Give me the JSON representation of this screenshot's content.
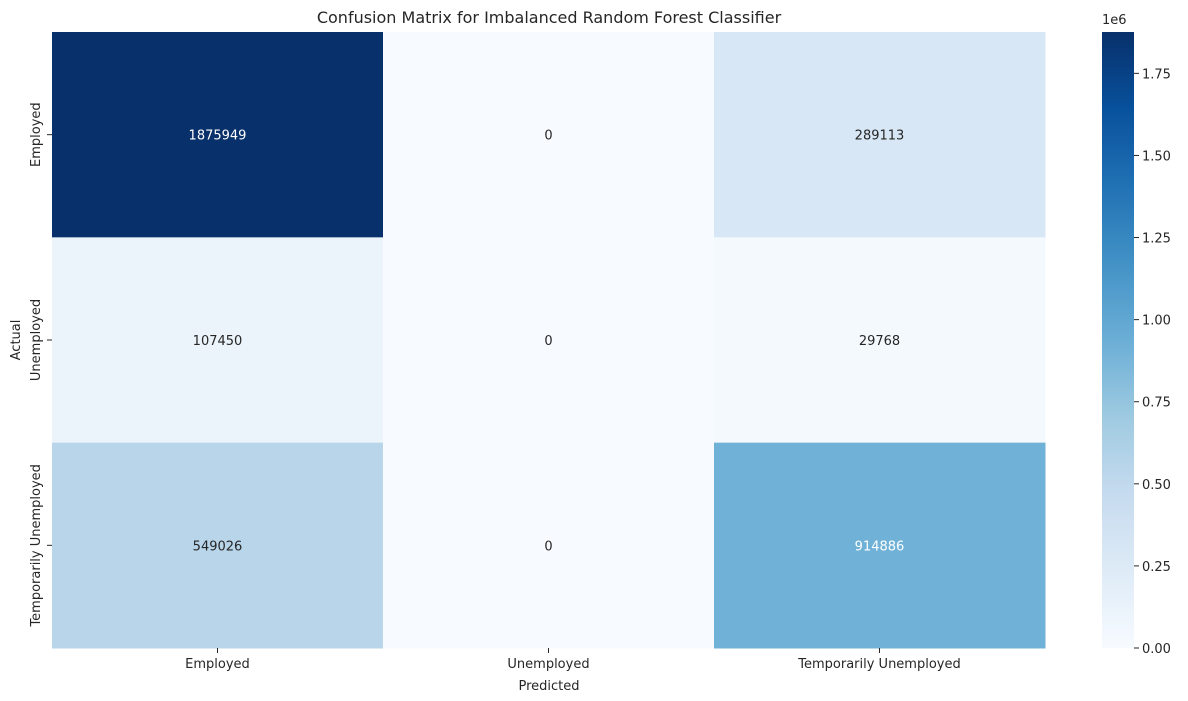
{
  "chart_data": {
    "type": "heatmap",
    "title": "Confusion Matrix for Imbalanced Random Forest Classifier",
    "xlabel": "Predicted",
    "ylabel": "Actual",
    "x_categories": [
      "Employed",
      "Unemployed",
      "Temporarily Unemployed"
    ],
    "y_categories": [
      "Employed",
      "Unemployed",
      "Temporarily Unemployed"
    ],
    "matrix": [
      [
        1875949,
        0,
        289113
      ],
      [
        107450,
        0,
        29768
      ],
      [
        549026,
        0,
        914886
      ]
    ],
    "colormap": "Blues",
    "colorbar": {
      "range": [
        0,
        1875949
      ],
      "ticks": [
        0.0,
        0.25,
        0.5,
        0.75,
        1.0,
        1.25,
        1.5,
        1.75
      ],
      "tick_labels": [
        "0.00",
        "0.25",
        "0.50",
        "0.75",
        "1.00",
        "1.25",
        "1.50",
        "1.75"
      ],
      "offset_label": "1e6",
      "scale": 1000000
    }
  }
}
